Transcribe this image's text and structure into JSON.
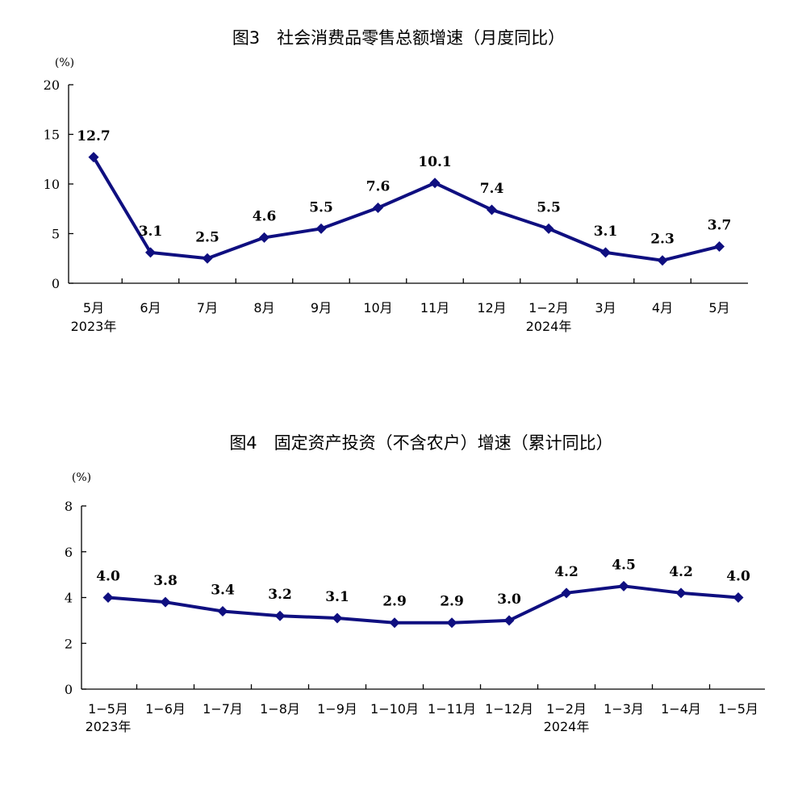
{
  "colors": {
    "series": "#0f0f80",
    "axis": "#000000"
  },
  "chart_data": [
    {
      "type": "line",
      "title": "图3　社会消费品零售总额增速（月度同比）",
      "unit": "(%)",
      "ylim": [
        0,
        20
      ],
      "yticks": [
        0,
        5,
        10,
        15,
        20
      ],
      "categories": [
        "5月",
        "6月",
        "7月",
        "8月",
        "9月",
        "10月",
        "11月",
        "12月",
        "1−2月",
        "3月",
        "4月",
        "5月"
      ],
      "year_labels": [
        {
          "category_index": 0,
          "text": "2023年"
        },
        {
          "category_index": 8,
          "text": "2024年"
        }
      ],
      "series": [
        {
          "values": [
            12.7,
            3.1,
            2.5,
            4.6,
            5.5,
            7.6,
            10.1,
            7.4,
            5.5,
            3.1,
            2.3,
            3.7
          ]
        }
      ],
      "data_labels": [
        "12.7",
        "3.1",
        "2.5",
        "4.6",
        "5.5",
        "7.6",
        "10.1",
        "7.4",
        "5.5",
        "3.1",
        "2.3",
        "3.7"
      ],
      "grid": false
    },
    {
      "type": "line",
      "title": "图4　固定资产投资（不含农户）增速（累计同比）",
      "unit": "(%)",
      "ylim": [
        0,
        8
      ],
      "yticks": [
        0,
        2,
        4,
        6,
        8
      ],
      "categories": [
        "1−5月",
        "1−6月",
        "1−7月",
        "1−8月",
        "1−9月",
        "1−10月",
        "1−11月",
        "1−12月",
        "1−2月",
        "1−3月",
        "1−4月",
        "1−5月"
      ],
      "year_labels": [
        {
          "category_index": 0,
          "text": "2023年"
        },
        {
          "category_index": 8,
          "text": "2024年"
        }
      ],
      "series": [
        {
          "values": [
            4.0,
            3.8,
            3.4,
            3.2,
            3.1,
            2.9,
            2.9,
            3.0,
            4.2,
            4.5,
            4.2,
            4.0
          ]
        }
      ],
      "data_labels": [
        "4.0",
        "3.8",
        "3.4",
        "3.2",
        "3.1",
        "2.9",
        "2.9",
        "3.0",
        "4.2",
        "4.5",
        "4.2",
        "4.0"
      ],
      "grid": false
    }
  ]
}
